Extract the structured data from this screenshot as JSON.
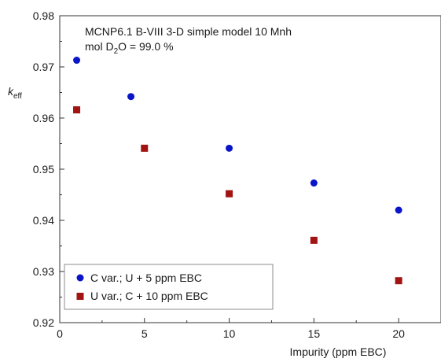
{
  "chart_data": {
    "type": "scatter",
    "annotation": {
      "line1": "MCNP6.1 B-VIII 3-D simple model 10 Mnh",
      "line2_prefix": "mol D",
      "line2_sub": "2",
      "line2_suffix": "O = 99.0 %"
    },
    "ylabel": {
      "main": "k",
      "sub": "eff"
    },
    "xlabel": "Impurity (ppm EBC)",
    "xlim": [
      0,
      22.5
    ],
    "ylim": [
      0.92,
      0.98
    ],
    "x_ticks": [
      0,
      5,
      10,
      15,
      20
    ],
    "x_tick_labels": [
      "0",
      "5",
      "10",
      "15",
      "20"
    ],
    "y_ticks": [
      0.92,
      0.93,
      0.94,
      0.95,
      0.96,
      0.97,
      0.98
    ],
    "y_tick_labels": [
      "0.92",
      "0.93",
      "0.94",
      "0.95",
      "0.96",
      "0.97",
      "0.98"
    ],
    "grid": false,
    "legend_position": "bottom-left",
    "series": [
      {
        "name": "C var.; U + 5 ppm EBC",
        "marker": "circle",
        "color": "#0a14c8",
        "points": [
          {
            "x": 1,
            "y": 0.9713
          },
          {
            "x": 4.2,
            "y": 0.9642
          },
          {
            "x": 10,
            "y": 0.9541
          },
          {
            "x": 15,
            "y": 0.9473
          },
          {
            "x": 20,
            "y": 0.942
          }
        ]
      },
      {
        "name": "U var.; C + 10 ppm EBC",
        "marker": "square",
        "color": "#a01414",
        "points": [
          {
            "x": 1,
            "y": 0.9616
          },
          {
            "x": 5,
            "y": 0.9541
          },
          {
            "x": 10,
            "y": 0.9452
          },
          {
            "x": 15,
            "y": 0.9361
          },
          {
            "x": 20,
            "y": 0.9282
          }
        ]
      }
    ]
  }
}
